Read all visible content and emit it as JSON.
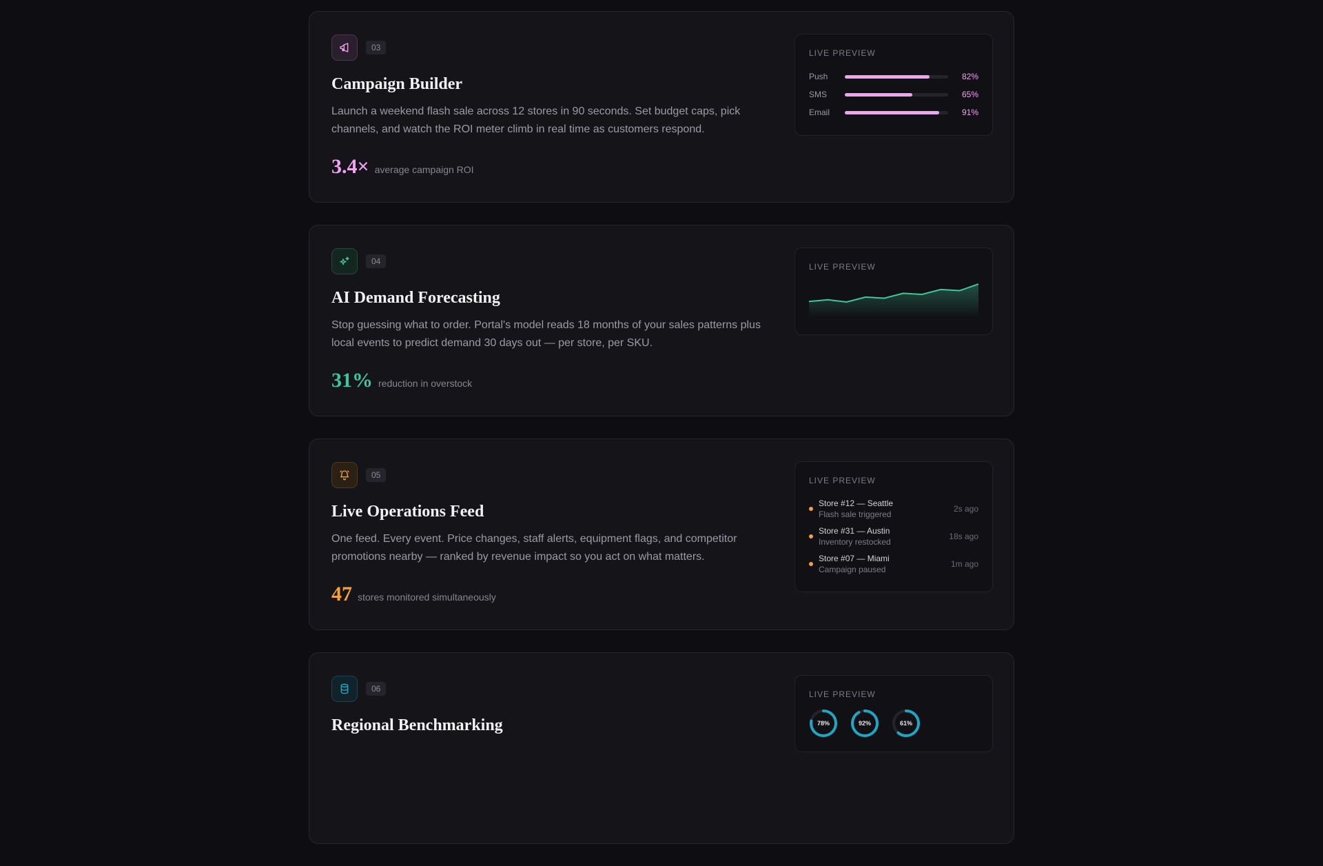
{
  "preview_label": "LIVE PREVIEW",
  "colors": {
    "pink": "#f0a3ee",
    "green": "#3ec79a",
    "amber": "#f2a23a",
    "cyan": "#1ea7c4"
  },
  "cards": [
    {
      "number": "03",
      "icon": "megaphone-icon",
      "title": "Campaign Builder",
      "description": "Launch a weekend flash sale across 12 stores in 90 seconds. Set budget caps, pick channels, and watch the ROI meter climb in real time as customers respond.",
      "metric_value": "3.4×",
      "metric_label": "average campaign ROI",
      "preview": {
        "bars": [
          {
            "label": "Push",
            "value": 82,
            "value_text": "82%"
          },
          {
            "label": "SMS",
            "value": 65,
            "value_text": "65%"
          },
          {
            "label": "Email",
            "value": 91,
            "value_text": "91%"
          }
        ]
      }
    },
    {
      "number": "04",
      "icon": "sparkles-icon",
      "title": "AI Demand Forecasting",
      "description": "Stop guessing what to order. Portal's model reads 18 months of your sales patterns plus local events to predict demand 30 days out — per store, per SKU.",
      "metric_value": "31%",
      "metric_label": "reduction in overstock",
      "preview": {
        "sparkline": [
          30,
          33,
          29,
          38,
          36,
          45,
          43,
          52,
          50,
          62
        ]
      }
    },
    {
      "number": "05",
      "icon": "alarm-bell-icon",
      "title": "Live Operations Feed",
      "description": "One feed. Every event. Price changes, staff alerts, equipment flags, and competitor promotions nearby — ranked by revenue impact so you act on what matters.",
      "metric_value": "47",
      "metric_label": "stores monitored simultaneously",
      "preview": {
        "feed": [
          {
            "store": "Store #12 — Seattle",
            "event": "Flash sale triggered",
            "time": "2s ago"
          },
          {
            "store": "Store #31 — Austin",
            "event": "Inventory restocked",
            "time": "18s ago"
          },
          {
            "store": "Store #07 — Miami",
            "event": "Campaign paused",
            "time": "1m ago"
          }
        ]
      }
    },
    {
      "number": "06",
      "icon": "database-icon",
      "title": "Regional Benchmarking",
      "preview": {
        "gauges": [
          {
            "value": 78,
            "label": "78%"
          },
          {
            "value": 92,
            "label": "92%"
          },
          {
            "value": 61,
            "label": "61%"
          }
        ]
      }
    }
  ]
}
